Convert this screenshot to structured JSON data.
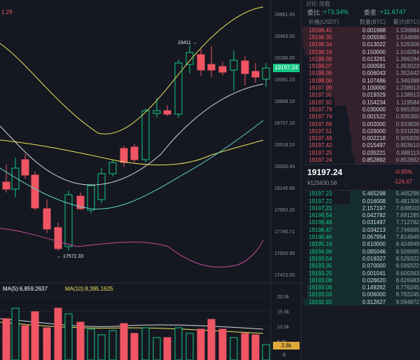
{
  "top_left_value": "1.29",
  "price_axis": [
    "19681.93",
    "19483.00",
    "19286.08",
    "19091.15",
    "18898.19",
    "18707.18",
    "18518.10",
    "18330.93",
    "18145.66",
    "17962.26",
    "17780.71",
    "17600.99",
    "17423.00"
  ],
  "current_price_tag": "19197.24",
  "high_annotation": "19411 →",
  "low_annotation": "← 17572.33",
  "ma_label_5": "MA(5):6,859.2637",
  "ma_label_10": "MA(10):8,395.1625",
  "volume_axis": [
    "20.0k",
    "15.0k",
    "10.0k",
    "5.0k"
  ],
  "volume_tag": "3.8k",
  "volume_zero": "0",
  "orderbook": {
    "top_cut": "对比·加载",
    "buy_ratio_label": "委比 : ",
    "buy_ratio_value": "+73.34%",
    "diff_label": "委差 : ",
    "diff_value": "+11.6747",
    "headers": [
      "价格(USDT)",
      "数量(BTC)",
      "累计(BTC)"
    ],
    "asks": [
      [
        "19198.41",
        "0.001988",
        "1.536884"
      ],
      [
        "19198.35",
        "0.005590",
        "1.534896"
      ],
      [
        "19198.34",
        "0.013022",
        "1.529306"
      ],
      [
        "19198.18",
        "0.150000",
        "1.516284"
      ],
      [
        "19198.09",
        "0.013261",
        "1.366284"
      ],
      [
        "19198.07",
        "0.000581",
        "1.353023"
      ],
      [
        "19198.06",
        "0.006043",
        "1.352442"
      ],
      [
        "19198.00",
        "0.107486",
        "1.346399"
      ],
      [
        "19197.99",
        "0.100000",
        "1.238913"
      ],
      [
        "19197.95",
        "0.019329",
        "1.138913"
      ],
      [
        "19197.92",
        "0.154234",
        "1.119584"
      ],
      [
        "19197.79",
        "0.030000",
        "0.965350"
      ],
      [
        "19197.74",
        "0.001522",
        "0.935350"
      ],
      [
        "19197.68",
        "0.002000",
        "0.933828"
      ],
      [
        "19197.51",
        "0.026000",
        "0.931828"
      ],
      [
        "19197.48",
        "0.002218",
        "0.905828"
      ],
      [
        "19197.42",
        "0.015497",
        "0.903610"
      ],
      [
        "19197.25",
        "0.035221",
        "0.888113"
      ],
      [
        "19197.24",
        "0.852892",
        "0.852892"
      ]
    ],
    "mid_price": "19197.24",
    "mid_cny": "¥125630.58",
    "mid_pct": "-0.65%",
    "mid_change": "-124.67",
    "bids": [
      [
        "19197.23",
        "5.465298",
        "5.465298"
      ],
      [
        "19197.22",
        "0.016008",
        "5.481306"
      ],
      [
        "19197.21",
        "2.157197",
        "7.638503"
      ],
      [
        "19196.54",
        "0.042782",
        "7.681285"
      ],
      [
        "19196.48",
        "0.031497",
        "7.712782"
      ],
      [
        "19196.47",
        "0.034213",
        "7.746995"
      ],
      [
        "19196.46",
        "0.067954",
        "7.814949"
      ],
      [
        "19195.19",
        "0.610000",
        "8.424949"
      ],
      [
        "19194.99",
        "0.085046",
        "8.509995"
      ],
      [
        "19193.54",
        "0.019327",
        "8.529322"
      ],
      [
        "19193.35",
        "0.070000",
        "8.599322"
      ],
      [
        "19193.25",
        "0.001041",
        "8.600363"
      ],
      [
        "19193.08",
        "0.026620",
        "8.626983"
      ],
      [
        "19193.06",
        "0.149262",
        "8.776245"
      ],
      [
        "19193.03",
        "0.006000",
        "8.782245"
      ],
      [
        "19192.92",
        "0.312627",
        "9.094872"
      ]
    ]
  },
  "colors": {
    "up": "#13c784",
    "down": "#ef5563",
    "ma_yellow": "#e8e35a",
    "ma_white": "#d6d6d6",
    "ma_pink": "#c64c9c",
    "ma_cyan": "#5fd0c8"
  }
}
